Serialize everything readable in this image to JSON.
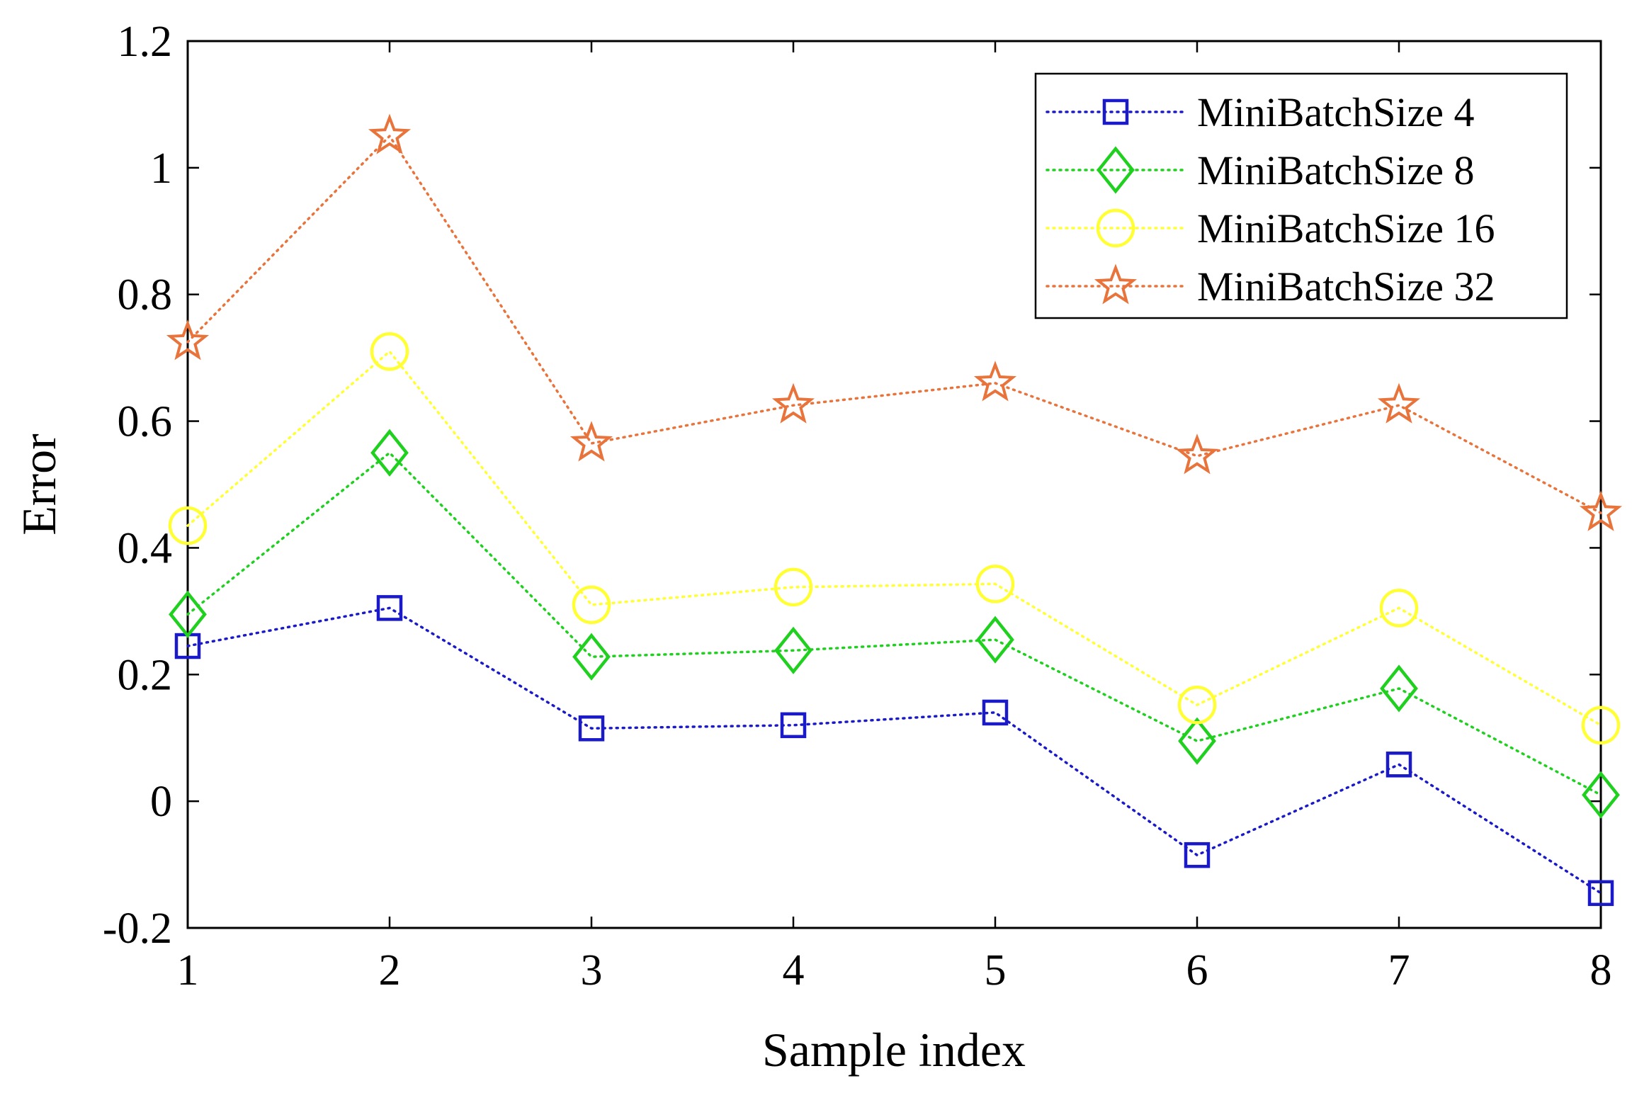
{
  "chart_data": {
    "type": "line",
    "title": "",
    "xlabel": "Sample index",
    "ylabel": "Error",
    "x": [
      1,
      2,
      3,
      4,
      5,
      6,
      7,
      8
    ],
    "xlim": [
      1,
      8
    ],
    "ylim": [
      -0.2,
      1.2
    ],
    "x_ticks": [
      1,
      2,
      3,
      4,
      5,
      6,
      7,
      8
    ],
    "x_tick_labels": [
      "1",
      "2",
      "3",
      "4",
      "5",
      "6",
      "7",
      "8"
    ],
    "y_ticks": [
      -0.2,
      0,
      0.2,
      0.4,
      0.6,
      0.8,
      1,
      1.2
    ],
    "y_tick_labels": [
      "-0.2",
      "0",
      "0.2",
      "0.4",
      "0.6",
      "0.8",
      "1",
      "1.2"
    ],
    "grid": false,
    "legend_position": "top-right",
    "series": [
      {
        "name": "MiniBatchSize 4",
        "color": "#1a1ac8",
        "marker": "square",
        "line_style": "dotted",
        "values": [
          0.245,
          0.305,
          0.115,
          0.12,
          0.14,
          -0.085,
          0.058,
          -0.145
        ]
      },
      {
        "name": "MiniBatchSize 8",
        "color": "#1fd01f",
        "marker": "diamond",
        "line_style": "dotted",
        "values": [
          0.295,
          0.55,
          0.228,
          0.238,
          0.255,
          0.095,
          0.178,
          0.01
        ]
      },
      {
        "name": "MiniBatchSize 16",
        "color": "#ffff33",
        "marker": "circle",
        "line_style": "dotted",
        "values": [
          0.435,
          0.71,
          0.31,
          0.338,
          0.343,
          0.152,
          0.305,
          0.12
        ]
      },
      {
        "name": "MiniBatchSize 32",
        "color": "#e8743c",
        "marker": "star",
        "line_style": "dotted",
        "values": [
          0.725,
          1.05,
          0.565,
          0.625,
          0.66,
          0.545,
          0.625,
          0.455
        ]
      }
    ]
  }
}
